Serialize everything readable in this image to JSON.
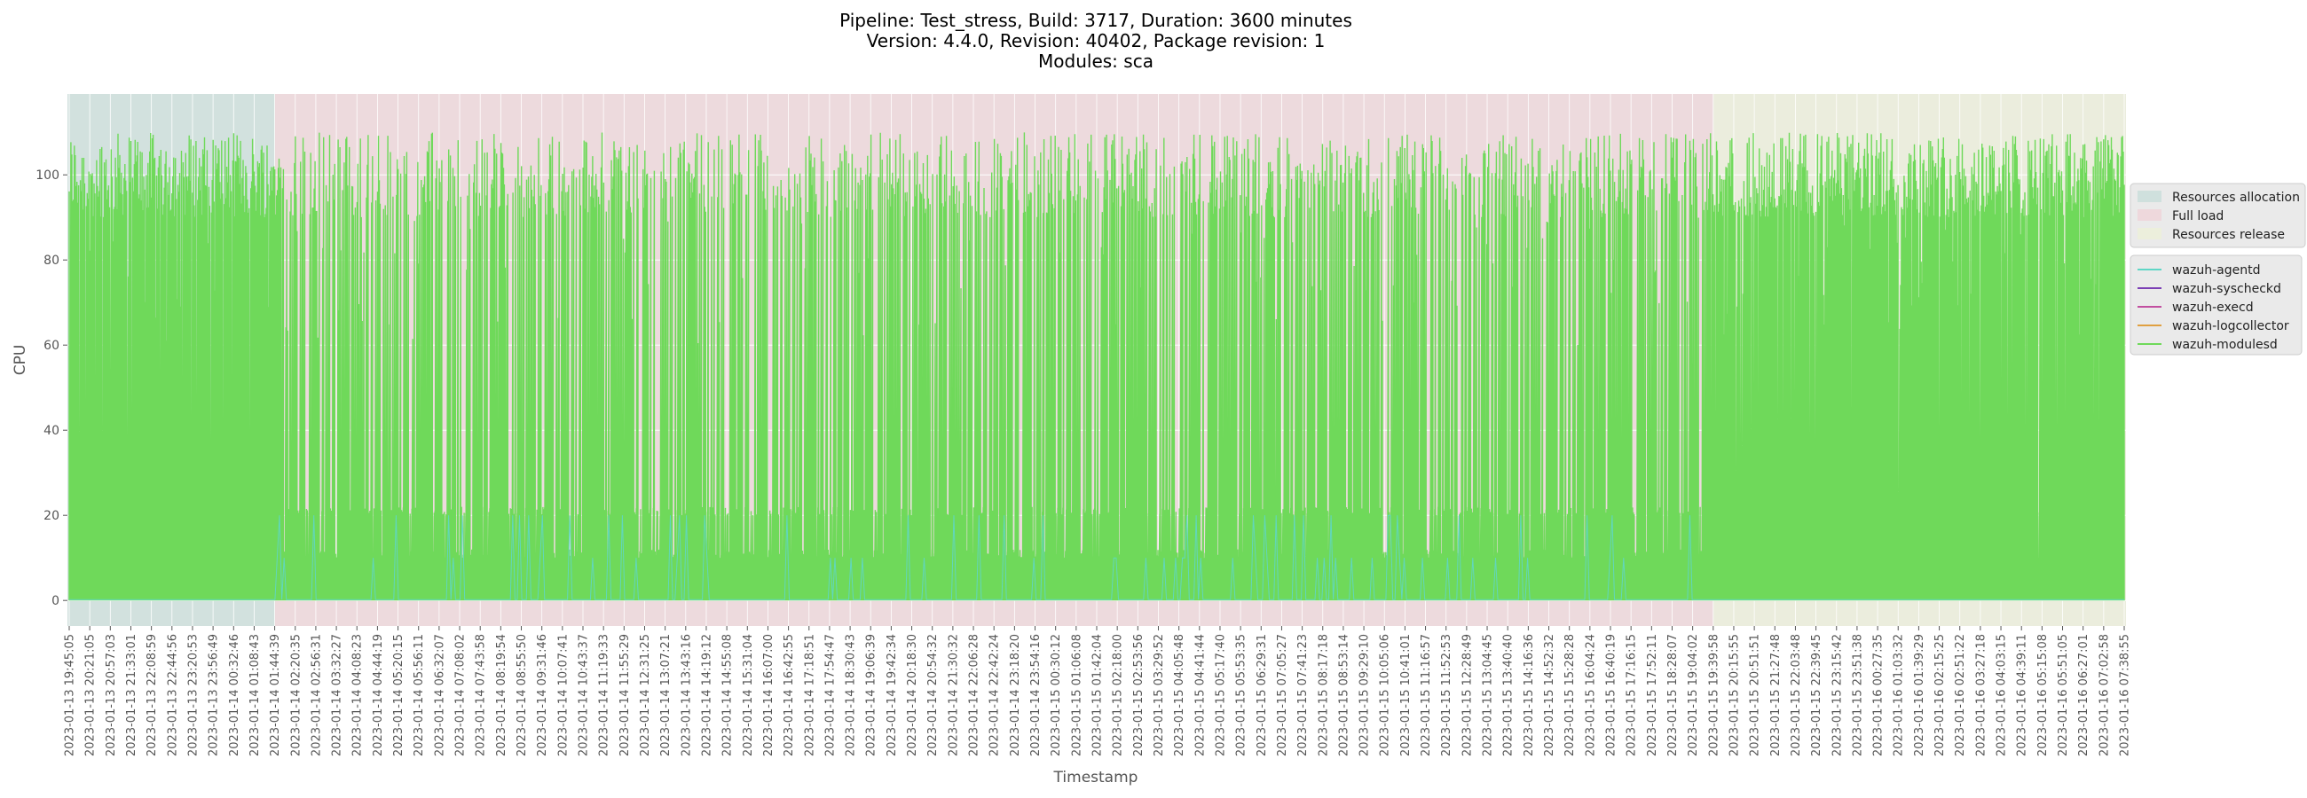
{
  "chart_data": {
    "type": "line",
    "title_lines": [
      "Pipeline: Test_stress, Build: 3717, Duration: 3600 minutes",
      "Version: 4.4.0, Revision: 40402, Package revision: 1",
      "Modules: sca"
    ],
    "xlabel": "Timestamp",
    "ylabel": "CPU",
    "ylim": [
      -6,
      119
    ],
    "yticks": [
      0,
      20,
      40,
      60,
      80,
      100
    ],
    "grid": true,
    "background_color": "#e5e5e5",
    "x_tick_labels": [
      "2023-01-13 19:45:05",
      "2023-01-13 20:21:05",
      "2023-01-13 20:57:03",
      "2023-01-13 21:33:01",
      "2023-01-13 22:08:59",
      "2023-01-13 22:44:56",
      "2023-01-13 23:20:53",
      "2023-01-13 23:56:49",
      "2023-01-14 00:32:46",
      "2023-01-14 01:08:43",
      "2023-01-14 01:44:39",
      "2023-01-14 02:20:35",
      "2023-01-14 02:56:31",
      "2023-01-14 03:32:27",
      "2023-01-14 04:08:23",
      "2023-01-14 04:44:19",
      "2023-01-14 05:20:15",
      "2023-01-14 05:56:11",
      "2023-01-14 06:32:07",
      "2023-01-14 07:08:02",
      "2023-01-14 07:43:58",
      "2023-01-14 08:19:54",
      "2023-01-14 08:55:50",
      "2023-01-14 09:31:46",
      "2023-01-14 10:07:41",
      "2023-01-14 10:43:37",
      "2023-01-14 11:19:33",
      "2023-01-14 11:55:29",
      "2023-01-14 12:31:25",
      "2023-01-14 13:07:21",
      "2023-01-14 13:43:16",
      "2023-01-14 14:19:12",
      "2023-01-14 14:55:08",
      "2023-01-14 15:31:04",
      "2023-01-14 16:07:00",
      "2023-01-14 16:42:55",
      "2023-01-14 17:18:51",
      "2023-01-14 17:54:47",
      "2023-01-14 18:30:43",
      "2023-01-14 19:06:39",
      "2023-01-14 19:42:34",
      "2023-01-14 20:18:30",
      "2023-01-14 20:54:32",
      "2023-01-14 21:30:32",
      "2023-01-14 22:06:28",
      "2023-01-14 22:42:24",
      "2023-01-14 23:18:20",
      "2023-01-14 23:54:16",
      "2023-01-15 00:30:12",
      "2023-01-15 01:06:08",
      "2023-01-15 01:42:04",
      "2023-01-15 02:18:00",
      "2023-01-15 02:53:56",
      "2023-01-15 03:29:52",
      "2023-01-15 04:05:48",
      "2023-01-15 04:41:44",
      "2023-01-15 05:17:40",
      "2023-01-15 05:53:35",
      "2023-01-15 06:29:31",
      "2023-01-15 07:05:27",
      "2023-01-15 07:41:23",
      "2023-01-15 08:17:18",
      "2023-01-15 08:53:14",
      "2023-01-15 09:29:10",
      "2023-01-15 10:05:06",
      "2023-01-15 10:41:01",
      "2023-01-15 11:16:57",
      "2023-01-15 11:52:53",
      "2023-01-15 12:28:49",
      "2023-01-15 13:04:45",
      "2023-01-15 13:40:40",
      "2023-01-15 14:16:36",
      "2023-01-15 14:52:32",
      "2023-01-15 15:28:28",
      "2023-01-15 16:04:24",
      "2023-01-15 16:40:19",
      "2023-01-15 17:16:15",
      "2023-01-15 17:52:11",
      "2023-01-15 18:28:07",
      "2023-01-15 19:04:02",
      "2023-01-15 19:39:58",
      "2023-01-15 20:15:55",
      "2023-01-15 20:51:51",
      "2023-01-15 21:27:48",
      "2023-01-15 22:03:48",
      "2023-01-15 22:39:45",
      "2023-01-15 23:15:42",
      "2023-01-15 23:51:38",
      "2023-01-16 00:27:35",
      "2023-01-16 01:03:32",
      "2023-01-16 01:39:29",
      "2023-01-16 02:15:25",
      "2023-01-16 02:51:22",
      "2023-01-16 03:27:18",
      "2023-01-16 04:03:15",
      "2023-01-16 04:39:11",
      "2023-01-16 05:15:08",
      "2023-01-16 05:51:05",
      "2023-01-16 06:27:01",
      "2023-01-16 07:02:58",
      "2023-01-16 07:38:55"
    ],
    "phases": [
      {
        "name": "Resources allocation",
        "start_tick": 0,
        "end_tick": 10,
        "color": "#cfe0dd"
      },
      {
        "name": "Full load",
        "start_tick": 10,
        "end_tick": 80,
        "color": "#eed8dc"
      },
      {
        "name": "Resources release",
        "start_tick": 80,
        "end_tick": 100,
        "color": "#ecefdc"
      }
    ],
    "series": [
      {
        "name": "wazuh-agentd",
        "color": "#5fd6c6",
        "typical": 0.2,
        "peaks": [
          10,
          20
        ]
      },
      {
        "name": "wazuh-syscheckd",
        "color": "#7b3fb5",
        "typical": 0,
        "peaks": []
      },
      {
        "name": "wazuh-execd",
        "color": "#c24fa0",
        "typical": 0,
        "peaks": []
      },
      {
        "name": "wazuh-logcollector",
        "color": "#e0a040",
        "typical": 0,
        "peaks": []
      },
      {
        "name": "wazuh-modulesd",
        "color": "#6fd95a",
        "typical_range_by_phase": {
          "Resources allocation": [
            0,
            110
          ],
          "Full load": [
            0,
            110
          ],
          "Resources release": [
            0,
            110
          ]
        }
      }
    ],
    "phase_legend_position": "right",
    "series_legend_position": "right"
  }
}
